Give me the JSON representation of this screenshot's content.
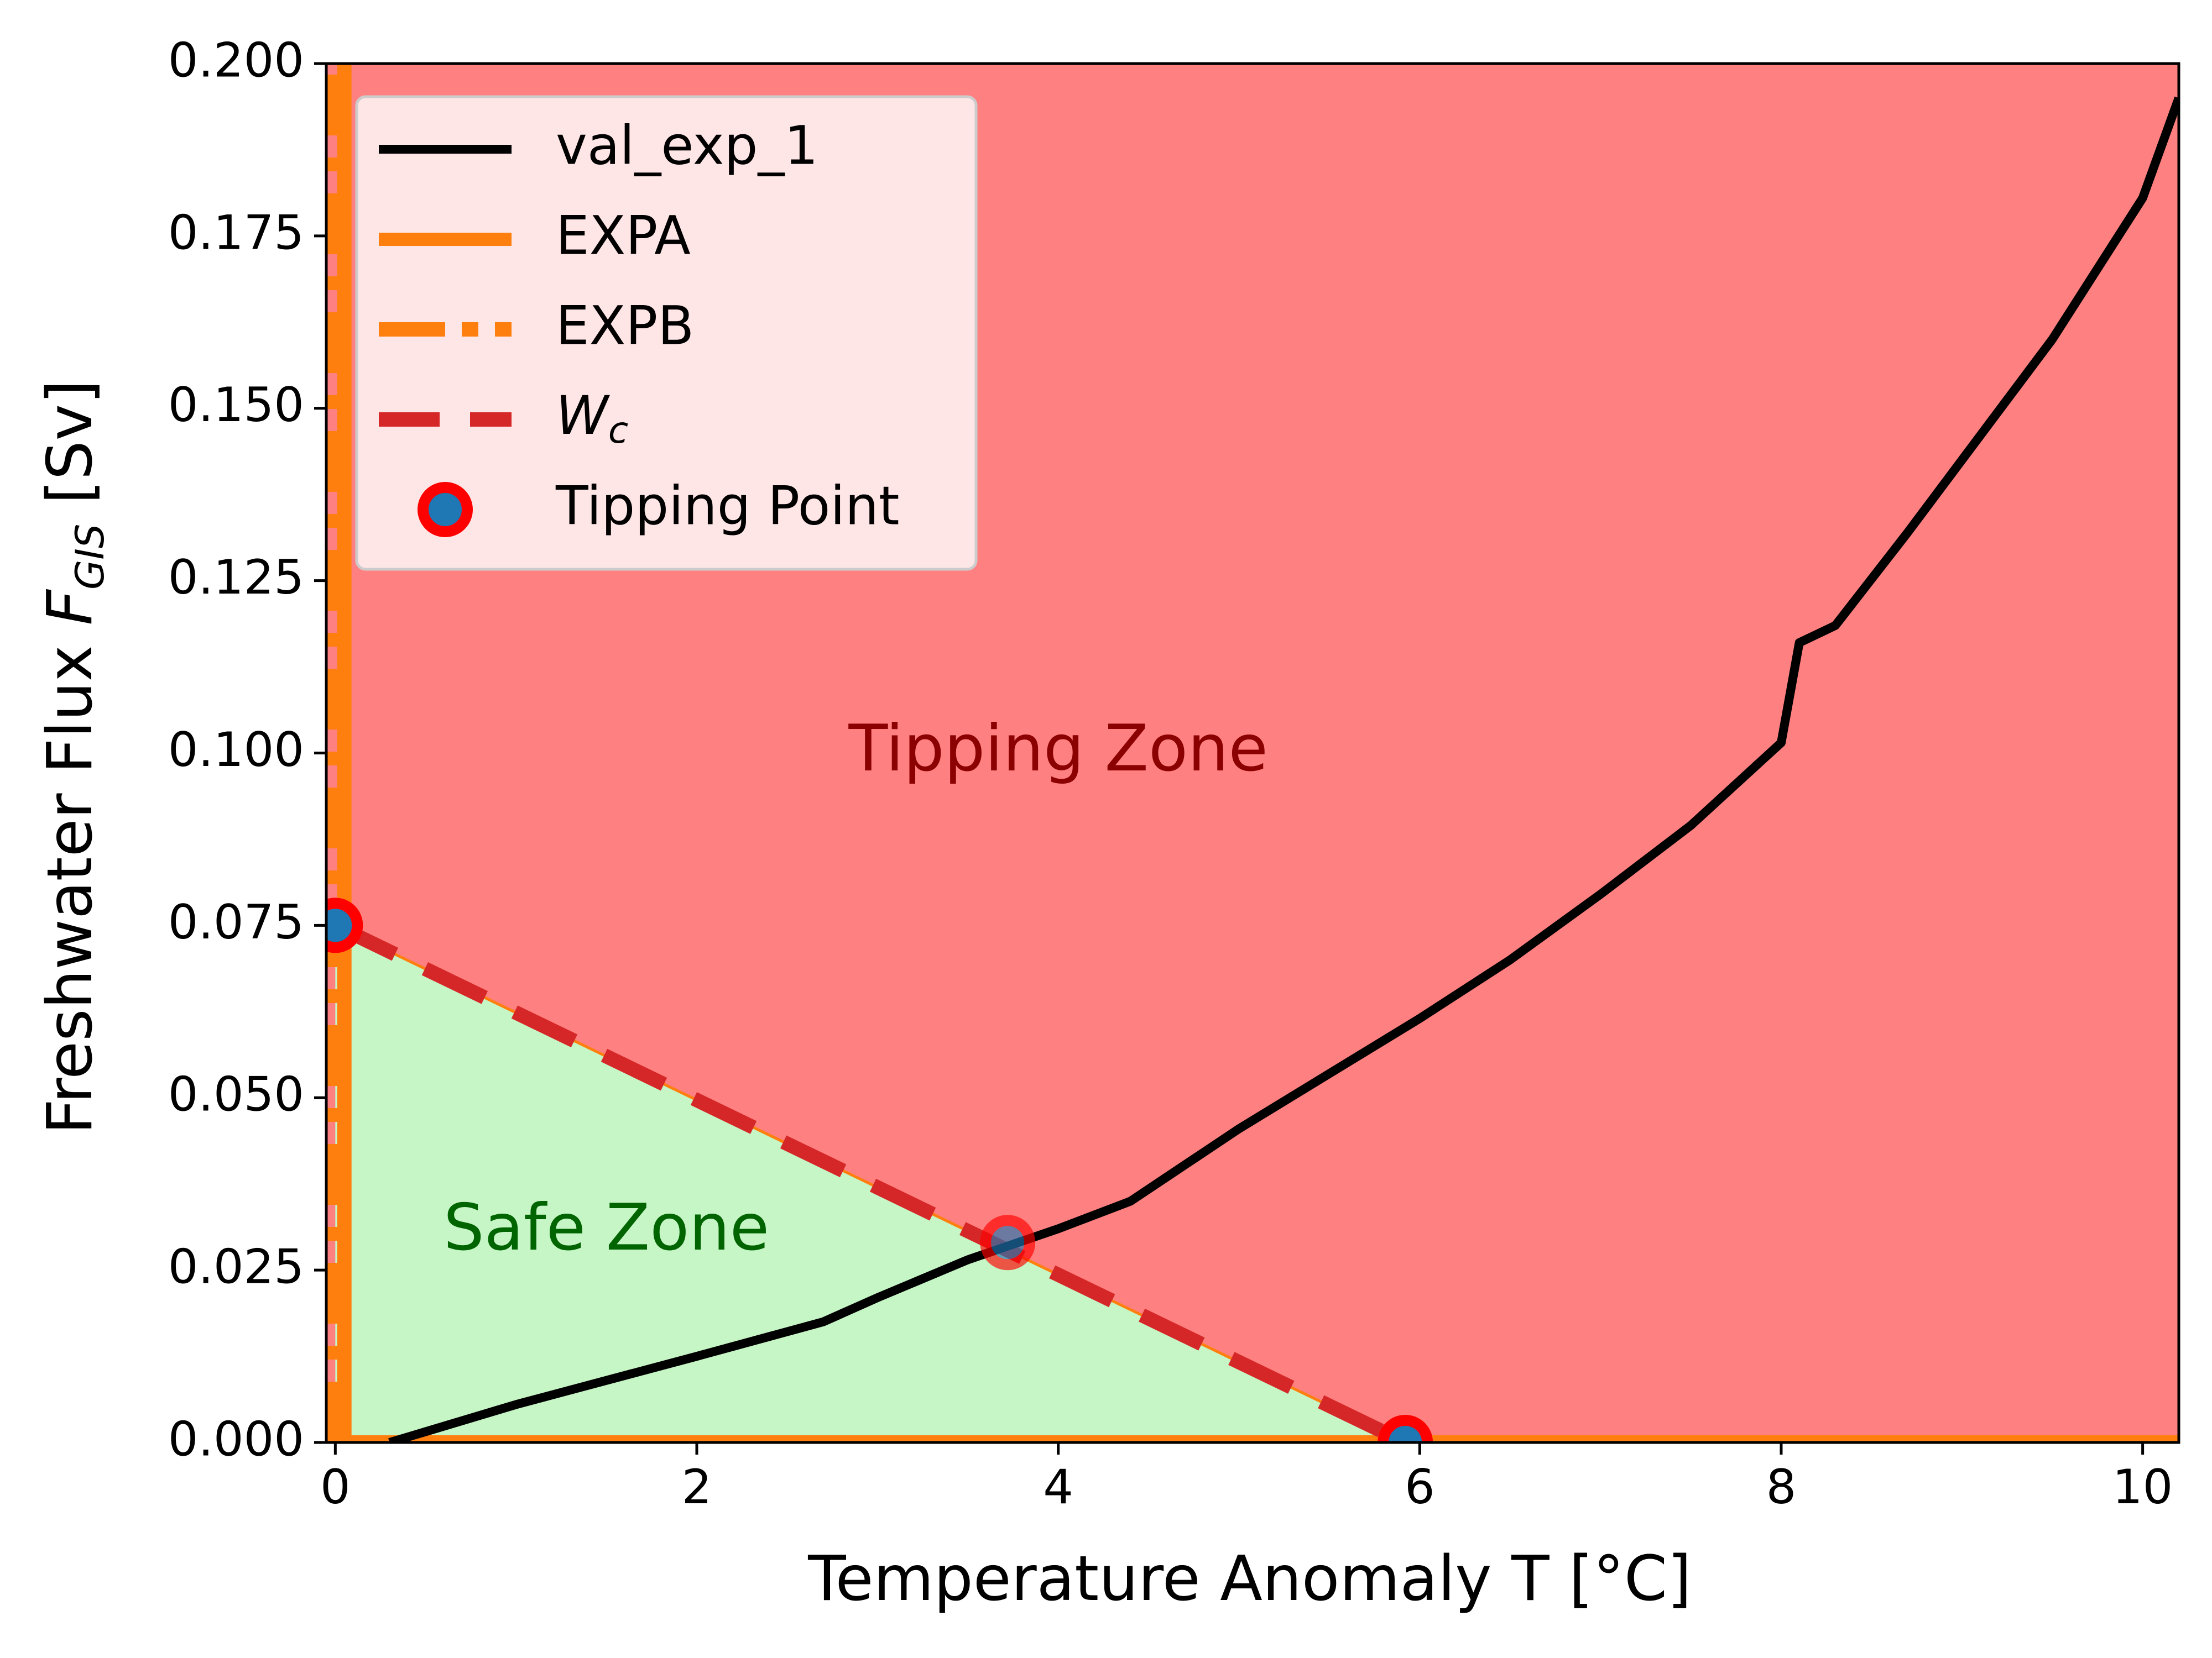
{
  "colors": {
    "tipping_zone": "#ff8080",
    "safe_zone": "#c6f5c6",
    "val_exp_1": "#000000",
    "expa": "#ff7f0e",
    "expb": "#ff7f0e",
    "wc": "#d62728",
    "tip_fill": "#1f77b4",
    "tip_edge": "#ff0000",
    "tipping_text": "#8b0000",
    "safe_text": "#006400"
  },
  "chart_data": {
    "type": "line",
    "xlabel": "Temperature Anomaly T [°C]",
    "ylabel": "Freshwater Flux F_GIS [Sv]",
    "xlim": [
      -0.05,
      10.2
    ],
    "ylim": [
      0.0,
      0.2
    ],
    "xticks": [
      "0",
      "2",
      "4",
      "6",
      "8",
      "10"
    ],
    "yticks": [
      "0.000",
      "0.025",
      "0.050",
      "0.075",
      "0.100",
      "0.125",
      "0.150",
      "0.175",
      "0.200"
    ],
    "grid": false,
    "legend_placement": "top-left",
    "series": [
      {
        "name": "val_exp_1",
        "style": "solid",
        "x": [
          0.3,
          1.0,
          2.0,
          2.7,
          3.0,
          3.5,
          4.0,
          4.4,
          4.6,
          5.0,
          5.5,
          6.0,
          6.5,
          7.0,
          7.5,
          8.0,
          8.1,
          8.3,
          8.7,
          9.0,
          9.5,
          10.0,
          10.2
        ],
        "y": [
          0.0,
          0.0055,
          0.0125,
          0.0175,
          0.021,
          0.0265,
          0.031,
          0.035,
          0.0385,
          0.0455,
          0.0535,
          0.0615,
          0.07,
          0.0795,
          0.0895,
          0.1015,
          0.116,
          0.1185,
          0.132,
          0.1425,
          0.16,
          0.1805,
          0.195
        ]
      },
      {
        "name": "EXPA",
        "style": "solid-thick",
        "segments": [
          {
            "x": [
              -0.05,
              10.2
            ],
            "y": [
              0.0,
              0.0
            ]
          },
          {
            "x": [
              0.05,
              0.05
            ],
            "y": [
              0.0,
              0.2
            ]
          }
        ]
      },
      {
        "name": "EXPB",
        "style": "dash-dot",
        "x": [
          0.0,
          0.0
        ],
        "y": [
          0.0,
          0.2
        ]
      },
      {
        "name": "W_c",
        "style": "dashed",
        "x": [
          0.0,
          5.92
        ],
        "y": [
          0.075,
          0.0
        ]
      }
    ],
    "tipping_points": {
      "name": "Tipping Point",
      "points": [
        {
          "x": 0.0,
          "y": 0.075
        },
        {
          "x": 3.72,
          "y": 0.029
        },
        {
          "x": 5.92,
          "y": 0.0
        }
      ]
    },
    "annotations": [
      {
        "text": "Tipping Zone",
        "x": 4.0,
        "y": 0.1
      },
      {
        "text": "Safe Zone",
        "x": 1.5,
        "y": 0.0305
      }
    ],
    "legend": [
      {
        "label": "val_exp_1",
        "key": "val_exp_1"
      },
      {
        "label": "EXPA",
        "key": "expa"
      },
      {
        "label": "EXPB",
        "key": "expb"
      },
      {
        "label": "W",
        "sub": "c",
        "key": "wc"
      },
      {
        "label": "Tipping Point",
        "key": "tip"
      }
    ]
  }
}
